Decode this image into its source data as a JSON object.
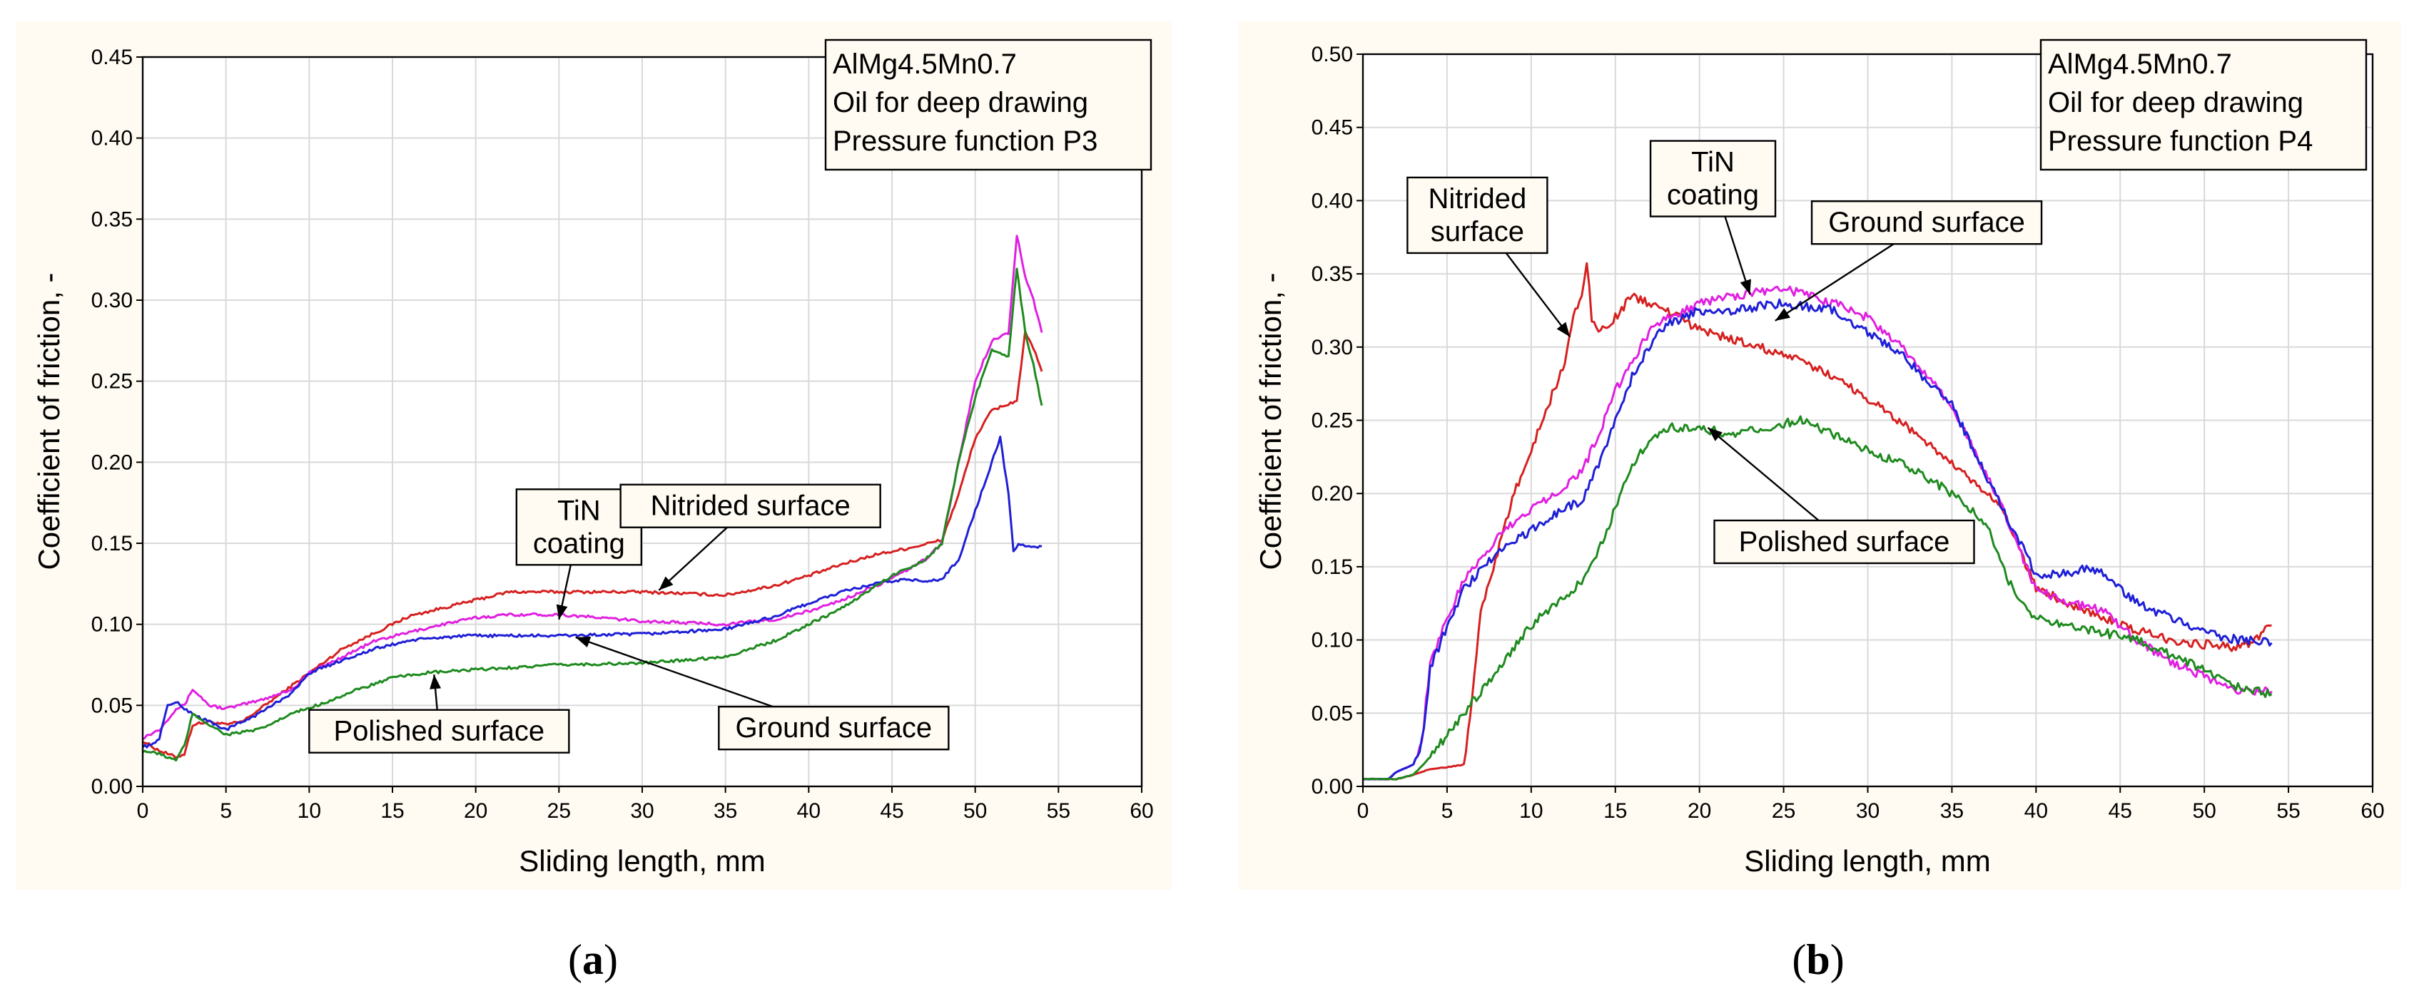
{
  "chart_data": [
    {
      "id": "a",
      "type": "line",
      "subfigure_label": "a",
      "xlabel": "Sliding length, mm",
      "ylabel": "Coefficient of friction, -",
      "xlim": [
        0,
        60
      ],
      "ylim": [
        0,
        0.45
      ],
      "xticks": [
        0,
        5,
        10,
        15,
        20,
        25,
        30,
        35,
        40,
        45,
        50,
        55,
        60
      ],
      "yticks": [
        0,
        0.05,
        0.1,
        0.15,
        0.2,
        0.25,
        0.3,
        0.35,
        0.4,
        0.45
      ],
      "ytick_labels": [
        "0.00",
        "0.05",
        "0.10",
        "0.15",
        "0.20",
        "0.25",
        "0.30",
        "0.35",
        "0.40",
        "0.45"
      ],
      "xtick_labels": [
        "0",
        "5",
        "10",
        "15",
        "20",
        "25",
        "30",
        "35",
        "40",
        "45",
        "50",
        "55",
        "60"
      ],
      "grid": true,
      "info_box": [
        "AlMg4.5Mn0.7",
        "Oil for deep drawing",
        "Pressure function P3"
      ],
      "series": [
        {
          "name": "Nitrided surface",
          "color": "#d62020",
          "x": [
            0,
            1,
            2,
            2.5,
            3,
            4,
            5,
            6,
            8,
            10,
            12,
            14,
            16,
            18,
            20,
            22,
            25,
            30,
            35,
            38,
            40,
            42,
            44,
            46,
            48,
            49,
            50,
            51,
            52,
            52.5,
            53,
            53.5,
            54
          ],
          "y": [
            0.028,
            0.022,
            0.018,
            0.02,
            0.038,
            0.04,
            0.038,
            0.04,
            0.055,
            0.07,
            0.085,
            0.095,
            0.105,
            0.11,
            0.115,
            0.12,
            0.12,
            0.12,
            0.118,
            0.124,
            0.13,
            0.137,
            0.143,
            0.147,
            0.152,
            0.18,
            0.215,
            0.232,
            0.236,
            0.238,
            0.28,
            0.27,
            0.256
          ]
        },
        {
          "name": "TiN coating",
          "color": "#e020e0",
          "x": [
            0,
            1,
            2,
            2.5,
            3,
            3.5,
            4,
            5,
            7,
            9,
            10,
            12,
            14,
            16,
            18,
            20,
            22,
            25,
            30,
            35,
            38,
            40,
            42,
            45,
            47,
            48,
            49,
            50,
            51,
            52,
            52.5,
            53,
            53.5,
            54
          ],
          "y": [
            0.03,
            0.035,
            0.048,
            0.05,
            0.06,
            0.055,
            0.05,
            0.048,
            0.053,
            0.06,
            0.07,
            0.08,
            0.09,
            0.095,
            0.1,
            0.104,
            0.106,
            0.106,
            0.102,
            0.1,
            0.103,
            0.108,
            0.115,
            0.128,
            0.14,
            0.15,
            0.2,
            0.25,
            0.275,
            0.28,
            0.34,
            0.315,
            0.3,
            0.28
          ]
        },
        {
          "name": "Ground surface",
          "color": "#1f1fd6",
          "x": [
            0,
            0.5,
            1,
            1.5,
            2,
            2.5,
            3,
            3.5,
            4,
            5,
            7,
            9,
            10,
            12,
            14,
            16,
            18,
            20,
            25,
            30,
            35,
            38,
            40,
            42,
            44,
            46,
            47,
            48,
            49,
            50,
            51,
            51.5,
            52,
            52.3,
            52.6,
            53,
            54
          ],
          "y": [
            0.025,
            0.025,
            0.03,
            0.05,
            0.052,
            0.048,
            0.045,
            0.042,
            0.04,
            0.035,
            0.045,
            0.058,
            0.07,
            0.078,
            0.085,
            0.09,
            0.092,
            0.093,
            0.093,
            0.094,
            0.097,
            0.105,
            0.113,
            0.12,
            0.125,
            0.128,
            0.126,
            0.128,
            0.14,
            0.17,
            0.2,
            0.215,
            0.18,
            0.145,
            0.15,
            0.148,
            0.148
          ]
        },
        {
          "name": "Polished surface",
          "color": "#1e8a1e",
          "x": [
            0,
            1,
            2,
            2.5,
            3,
            4,
            5,
            7,
            9,
            11,
            13,
            15,
            17,
            20,
            25,
            30,
            35,
            38,
            40,
            42,
            45,
            47,
            48,
            49,
            50,
            51,
            52,
            52.5,
            53,
            53.5,
            54
          ],
          "y": [
            0.022,
            0.02,
            0.016,
            0.025,
            0.045,
            0.038,
            0.032,
            0.035,
            0.045,
            0.052,
            0.06,
            0.067,
            0.07,
            0.072,
            0.075,
            0.076,
            0.08,
            0.09,
            0.1,
            0.11,
            0.13,
            0.14,
            0.15,
            0.2,
            0.24,
            0.27,
            0.265,
            0.32,
            0.28,
            0.26,
            0.235
          ]
        }
      ],
      "annotations": [
        {
          "text": [
            "TiN",
            "coating"
          ],
          "x": 26.2,
          "y": 0.16,
          "arrow_to": [
            25,
            0.103
          ]
        },
        {
          "text": [
            "Nitrided surface"
          ],
          "x": 36.5,
          "y": 0.173,
          "arrow_to": [
            31,
            0.121
          ]
        },
        {
          "text": [
            "Ground surface"
          ],
          "x": 41.5,
          "y": 0.036,
          "arrow_to": [
            26,
            0.092
          ]
        },
        {
          "text": [
            "Polished surface"
          ],
          "x": 17.8,
          "y": 0.034,
          "arrow_to": [
            17.5,
            0.069
          ]
        }
      ]
    },
    {
      "id": "b",
      "type": "line",
      "subfigure_label": "b",
      "xlabel": "Sliding length, mm",
      "ylabel": "Coefficient of friction, -",
      "xlim": [
        0,
        60
      ],
      "ylim": [
        0,
        0.5
      ],
      "xticks": [
        0,
        5,
        10,
        15,
        20,
        25,
        30,
        35,
        40,
        45,
        50,
        55,
        60
      ],
      "yticks": [
        0,
        0.05,
        0.1,
        0.15,
        0.2,
        0.25,
        0.3,
        0.35,
        0.4,
        0.45,
        0.5
      ],
      "ytick_labels": [
        "0.00",
        "0.05",
        "0.10",
        "0.15",
        "0.20",
        "0.25",
        "0.30",
        "0.35",
        "0.40",
        "0.45",
        "0.50"
      ],
      "xtick_labels": [
        "0",
        "5",
        "10",
        "15",
        "20",
        "25",
        "30",
        "35",
        "40",
        "45",
        "50",
        "55",
        "60"
      ],
      "grid": true,
      "info_box": [
        "AlMg4.5Mn0.7",
        "Oil for deep drawing",
        "Pressure function P4"
      ],
      "series": [
        {
          "name": "Nitrided surface",
          "color": "#d62020",
          "x": [
            0,
            2,
            3,
            4,
            5,
            6,
            6.5,
            7,
            8,
            9,
            10,
            11,
            12,
            12.5,
            13,
            13.3,
            13.6,
            14,
            15,
            16,
            17,
            18,
            20,
            22,
            25,
            28,
            30,
            33,
            35,
            38,
            40,
            42,
            45,
            48,
            50,
            52,
            53,
            54
          ],
          "y": [
            0.005,
            0.005,
            0.008,
            0.012,
            0.013,
            0.015,
            0.06,
            0.12,
            0.16,
            0.2,
            0.23,
            0.26,
            0.29,
            0.32,
            0.335,
            0.36,
            0.32,
            0.31,
            0.32,
            0.335,
            0.33,
            0.325,
            0.312,
            0.305,
            0.295,
            0.28,
            0.265,
            0.24,
            0.22,
            0.19,
            0.135,
            0.125,
            0.11,
            0.1,
            0.097,
            0.095,
            0.1,
            0.11
          ]
        },
        {
          "name": "TiN coating",
          "color": "#e020e0",
          "x": [
            0,
            1.5,
            2,
            3,
            3.5,
            4,
            5,
            6,
            8,
            10,
            12,
            13,
            14,
            15,
            16,
            17,
            18,
            20,
            22,
            25,
            28,
            30,
            32,
            35,
            38,
            40,
            42,
            44,
            46,
            48,
            50,
            52,
            54
          ],
          "y": [
            0.005,
            0.005,
            0.01,
            0.015,
            0.03,
            0.085,
            0.115,
            0.14,
            0.17,
            0.19,
            0.205,
            0.215,
            0.24,
            0.27,
            0.29,
            0.31,
            0.32,
            0.33,
            0.335,
            0.34,
            0.33,
            0.32,
            0.3,
            0.26,
            0.19,
            0.135,
            0.125,
            0.12,
            0.1,
            0.085,
            0.075,
            0.065,
            0.065
          ]
        },
        {
          "name": "Ground surface",
          "color": "#1f1fd6",
          "x": [
            0,
            1.5,
            2,
            3,
            3.5,
            4,
            5,
            6,
            8,
            10,
            12,
            13,
            14,
            15,
            16,
            17,
            18,
            20,
            22,
            25,
            28,
            30,
            32,
            35,
            38,
            40,
            42,
            43,
            44,
            46,
            48,
            50,
            52,
            54
          ],
          "y": [
            0.005,
            0.005,
            0.01,
            0.015,
            0.03,
            0.08,
            0.11,
            0.135,
            0.16,
            0.175,
            0.19,
            0.195,
            0.22,
            0.25,
            0.28,
            0.3,
            0.315,
            0.325,
            0.325,
            0.33,
            0.325,
            0.31,
            0.295,
            0.26,
            0.19,
            0.145,
            0.145,
            0.15,
            0.145,
            0.125,
            0.115,
            0.105,
            0.1,
            0.098
          ]
        },
        {
          "name": "Polished surface",
          "color": "#1e8a1e",
          "x": [
            0,
            2,
            3,
            4,
            5,
            6,
            8,
            10,
            12,
            13,
            14,
            15,
            16,
            17,
            18,
            20,
            22,
            24,
            26,
            28,
            30,
            33,
            35,
            37,
            38,
            39,
            40,
            42,
            44,
            46,
            48,
            50,
            52,
            54
          ],
          "y": [
            0.005,
            0.005,
            0.008,
            0.02,
            0.035,
            0.05,
            0.08,
            0.11,
            0.13,
            0.14,
            0.16,
            0.19,
            0.22,
            0.235,
            0.245,
            0.245,
            0.24,
            0.245,
            0.25,
            0.24,
            0.23,
            0.215,
            0.2,
            0.18,
            0.15,
            0.125,
            0.115,
            0.11,
            0.105,
            0.1,
            0.09,
            0.08,
            0.068,
            0.063
          ]
        }
      ],
      "annotations": [
        {
          "text": [
            "Nitrided",
            "surface"
          ],
          "x": 6.8,
          "y": 0.39,
          "arrow_to": [
            12.3,
            0.307
          ]
        },
        {
          "text": [
            "TiN",
            "coating"
          ],
          "x": 20.8,
          "y": 0.415,
          "arrow_to": [
            23,
            0.336
          ]
        },
        {
          "text": [
            "Ground surface"
          ],
          "x": 33.5,
          "y": 0.385,
          "arrow_to": [
            24.5,
            0.318
          ]
        },
        {
          "text": [
            "Polished surface"
          ],
          "x": 28.6,
          "y": 0.167,
          "arrow_to": [
            20.5,
            0.245
          ]
        }
      ]
    }
  ],
  "captions": {
    "a": {
      "open": "(",
      "letter": "a",
      "close": ")"
    },
    "b": {
      "open": "(",
      "letter": "b",
      "close": ")"
    }
  }
}
